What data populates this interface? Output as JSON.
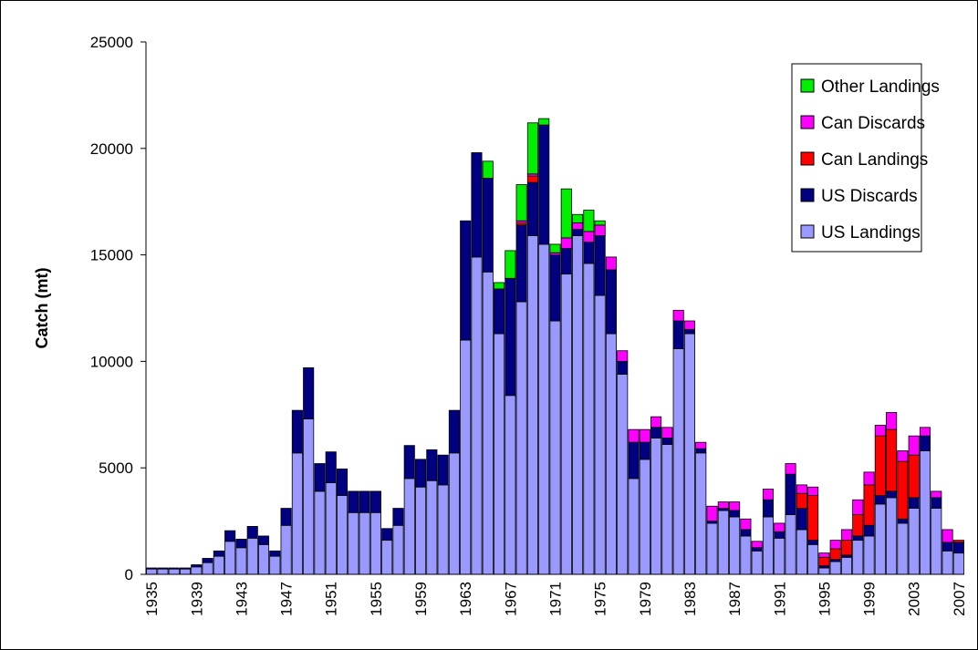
{
  "chart_data": {
    "type": "stacked_bar",
    "y_label": "Catch (mt)",
    "categories": [
      "1935",
      null,
      null,
      null,
      "1939",
      null,
      null,
      null,
      "1943",
      null,
      null,
      null,
      "1947",
      null,
      null,
      null,
      "1951",
      null,
      null,
      null,
      "1955",
      null,
      null,
      null,
      "1959",
      null,
      null,
      null,
      "1963",
      null,
      null,
      null,
      "1967",
      null,
      null,
      null,
      "1971",
      null,
      null,
      null,
      "1975",
      null,
      null,
      null,
      "1979",
      null,
      null,
      null,
      "1983",
      null,
      null,
      null,
      "1987",
      null,
      null,
      null,
      "1991",
      null,
      null,
      null,
      "1995",
      null,
      null,
      null,
      "1999",
      null,
      null,
      null,
      "2003",
      null,
      null,
      null,
      "2007"
    ],
    "series": [
      {
        "name": "US Landings",
        "color": "#9999ff",
        "values": [
          250,
          250,
          250,
          250,
          350,
          550,
          850,
          1550,
          1250,
          1700,
          1400,
          850,
          2300,
          5700,
          7300,
          3900,
          4300,
          3700,
          2900,
          2900,
          2900,
          1600,
          2300,
          4500,
          4100,
          4400,
          4200,
          5700,
          11000,
          14900,
          14200,
          11300,
          8400,
          12800,
          15900,
          15500,
          11900,
          14100,
          15900,
          14600,
          13100,
          11300,
          9400,
          4500,
          5400,
          6400,
          6100,
          10600,
          11300,
          5700,
          2400,
          3000,
          2700,
          1800,
          1100,
          2700,
          1700,
          2800,
          2100,
          1400,
          300,
          600,
          800,
          1600,
          1800,
          3300,
          3600,
          2400,
          3100,
          5800,
          3100,
          1100,
          1000
        ]
      },
      {
        "name": "US Discards",
        "color": "#000080",
        "values": [
          50,
          50,
          50,
          50,
          100,
          200,
          250,
          500,
          400,
          550,
          400,
          250,
          800,
          2000,
          2400,
          1300,
          1450,
          1250,
          1000,
          1000,
          1000,
          550,
          800,
          1550,
          1300,
          1450,
          1400,
          2000,
          5600,
          4900,
          4400,
          2100,
          5500,
          3600,
          2500,
          5600,
          3100,
          1200,
          300,
          1000,
          2800,
          3000,
          600,
          1700,
          800,
          500,
          300,
          1300,
          200,
          200,
          100,
          100,
          300,
          300,
          150,
          800,
          300,
          1900,
          1000,
          200,
          100,
          100,
          100,
          200,
          500,
          400,
          300,
          200,
          500,
          700,
          500,
          400,
          500
        ]
      },
      {
        "name": "Can Landings",
        "color": "#ff0000",
        "values": [
          0,
          0,
          0,
          0,
          0,
          0,
          0,
          0,
          0,
          0,
          0,
          0,
          0,
          0,
          0,
          0,
          0,
          0,
          0,
          0,
          0,
          0,
          0,
          0,
          0,
          0,
          0,
          0,
          0,
          0,
          0,
          0,
          0,
          100,
          300,
          0,
          0,
          0,
          0,
          0,
          0,
          0,
          0,
          0,
          0,
          0,
          0,
          0,
          0,
          0,
          0,
          0,
          0,
          0,
          0,
          0,
          0,
          0,
          700,
          2100,
          400,
          500,
          700,
          1000,
          1900,
          2800,
          2900,
          2700,
          2000,
          0,
          0,
          0,
          100
        ]
      },
      {
        "name": "Can Discards",
        "color": "#ff00ff",
        "values": [
          0,
          0,
          0,
          0,
          0,
          0,
          0,
          0,
          0,
          0,
          0,
          0,
          0,
          0,
          0,
          0,
          0,
          0,
          0,
          0,
          0,
          0,
          0,
          0,
          0,
          0,
          0,
          0,
          0,
          0,
          0,
          0,
          0,
          100,
          100,
          0,
          100,
          500,
          300,
          500,
          500,
          600,
          500,
          600,
          600,
          500,
          500,
          500,
          400,
          300,
          700,
          300,
          400,
          500,
          300,
          500,
          400,
          500,
          400,
          400,
          200,
          400,
          500,
          700,
          600,
          500,
          800,
          500,
          900,
          400,
          300,
          600,
          0
        ]
      },
      {
        "name": "Other Landings",
        "color": "#00ee00",
        "values": [
          0,
          0,
          0,
          0,
          0,
          0,
          0,
          0,
          0,
          0,
          0,
          0,
          0,
          0,
          0,
          0,
          0,
          0,
          0,
          0,
          0,
          0,
          0,
          0,
          0,
          0,
          0,
          0,
          0,
          0,
          800,
          300,
          1300,
          1700,
          2400,
          300,
          400,
          2300,
          400,
          1000,
          200,
          0,
          0,
          0,
          0,
          0,
          0,
          0,
          0,
          0,
          0,
          0,
          0,
          0,
          0,
          0,
          0,
          0,
          0,
          0,
          0,
          0,
          0,
          0,
          0,
          0,
          0,
          0,
          0,
          0,
          0,
          0,
          0
        ]
      }
    ],
    "ylim": [
      0,
      25000
    ],
    "yticks": [
      0,
      5000,
      10000,
      15000,
      20000,
      25000
    ],
    "grid": false,
    "legend": "top-right"
  }
}
